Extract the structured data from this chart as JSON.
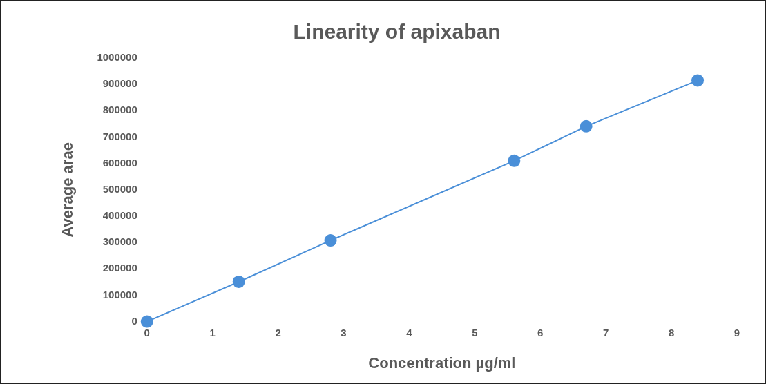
{
  "chart_data": {
    "type": "line",
    "title": "Linearity of apixaban",
    "xlabel": "Concentration µg/ml",
    "ylabel": "Average arae",
    "x": [
      0,
      1.4,
      2.8,
      5.6,
      6.7,
      8.4
    ],
    "series": [
      {
        "color": "#4a8fd8",
        "values": [
          0,
          151000,
          308000,
          610000,
          741000,
          915000
        ]
      }
    ],
    "xlim": [
      0,
      9
    ],
    "xticks": [
      0,
      1,
      2,
      3,
      4,
      5,
      6,
      7,
      8,
      9
    ],
    "ylim": [
      0,
      1000000
    ],
    "yticks": [
      0,
      100000,
      200000,
      300000,
      400000,
      500000,
      600000,
      700000,
      800000,
      900000,
      1000000
    ],
    "marker": "circle",
    "line_style": "solid",
    "legend": false,
    "grid": false
  }
}
